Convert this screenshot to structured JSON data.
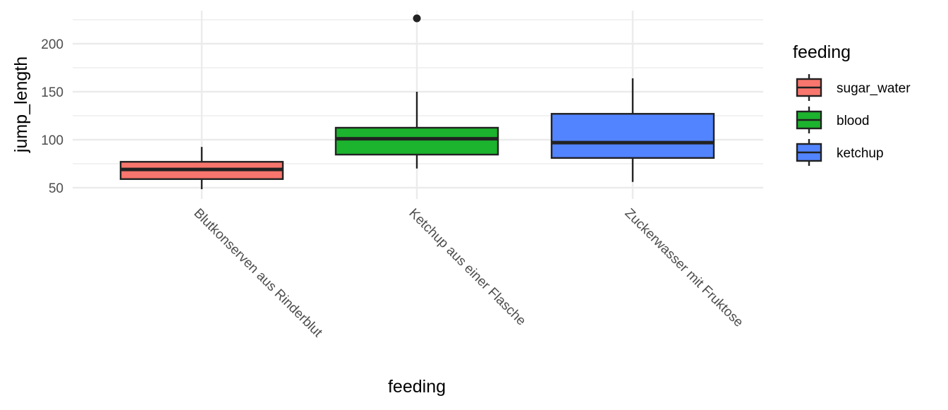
{
  "chart_data": {
    "type": "boxplot",
    "title": "",
    "xlabel": "feeding",
    "ylabel": "jump_length",
    "ylim": [
      38,
      235
    ],
    "yticks": [
      50,
      100,
      150,
      200
    ],
    "grid": true,
    "categories": [
      "Blutkonserven aus Rinderblut",
      "Ketchup aus einer Flasche",
      "Zuckerwasser mit Fruktose"
    ],
    "boxes": [
      {
        "category": "Blutkonserven aus Rinderblut",
        "group": "sugar_water",
        "min": 48.5,
        "q1": 59,
        "median": 69,
        "q3": 77,
        "max": 92.5,
        "outliers": []
      },
      {
        "category": "Ketchup aus einer Flasche",
        "group": "blood",
        "min": 70,
        "q1": 84.5,
        "median": 101,
        "q3": 112.5,
        "max": 150,
        "outliers": [
          226.5
        ]
      },
      {
        "category": "Zuckerwasser mit Fruktose",
        "group": "ketchup",
        "min": 56,
        "q1": 81,
        "median": 97,
        "q3": 127,
        "max": 164,
        "outliers": []
      }
    ],
    "legend": {
      "title": "feeding",
      "placement": "right",
      "entries": [
        {
          "label": "sugar_water",
          "color": "#F8766D"
        },
        {
          "label": "blood",
          "color": "#1CB32E"
        },
        {
          "label": "ketchup",
          "color": "#5284FF"
        }
      ]
    }
  }
}
